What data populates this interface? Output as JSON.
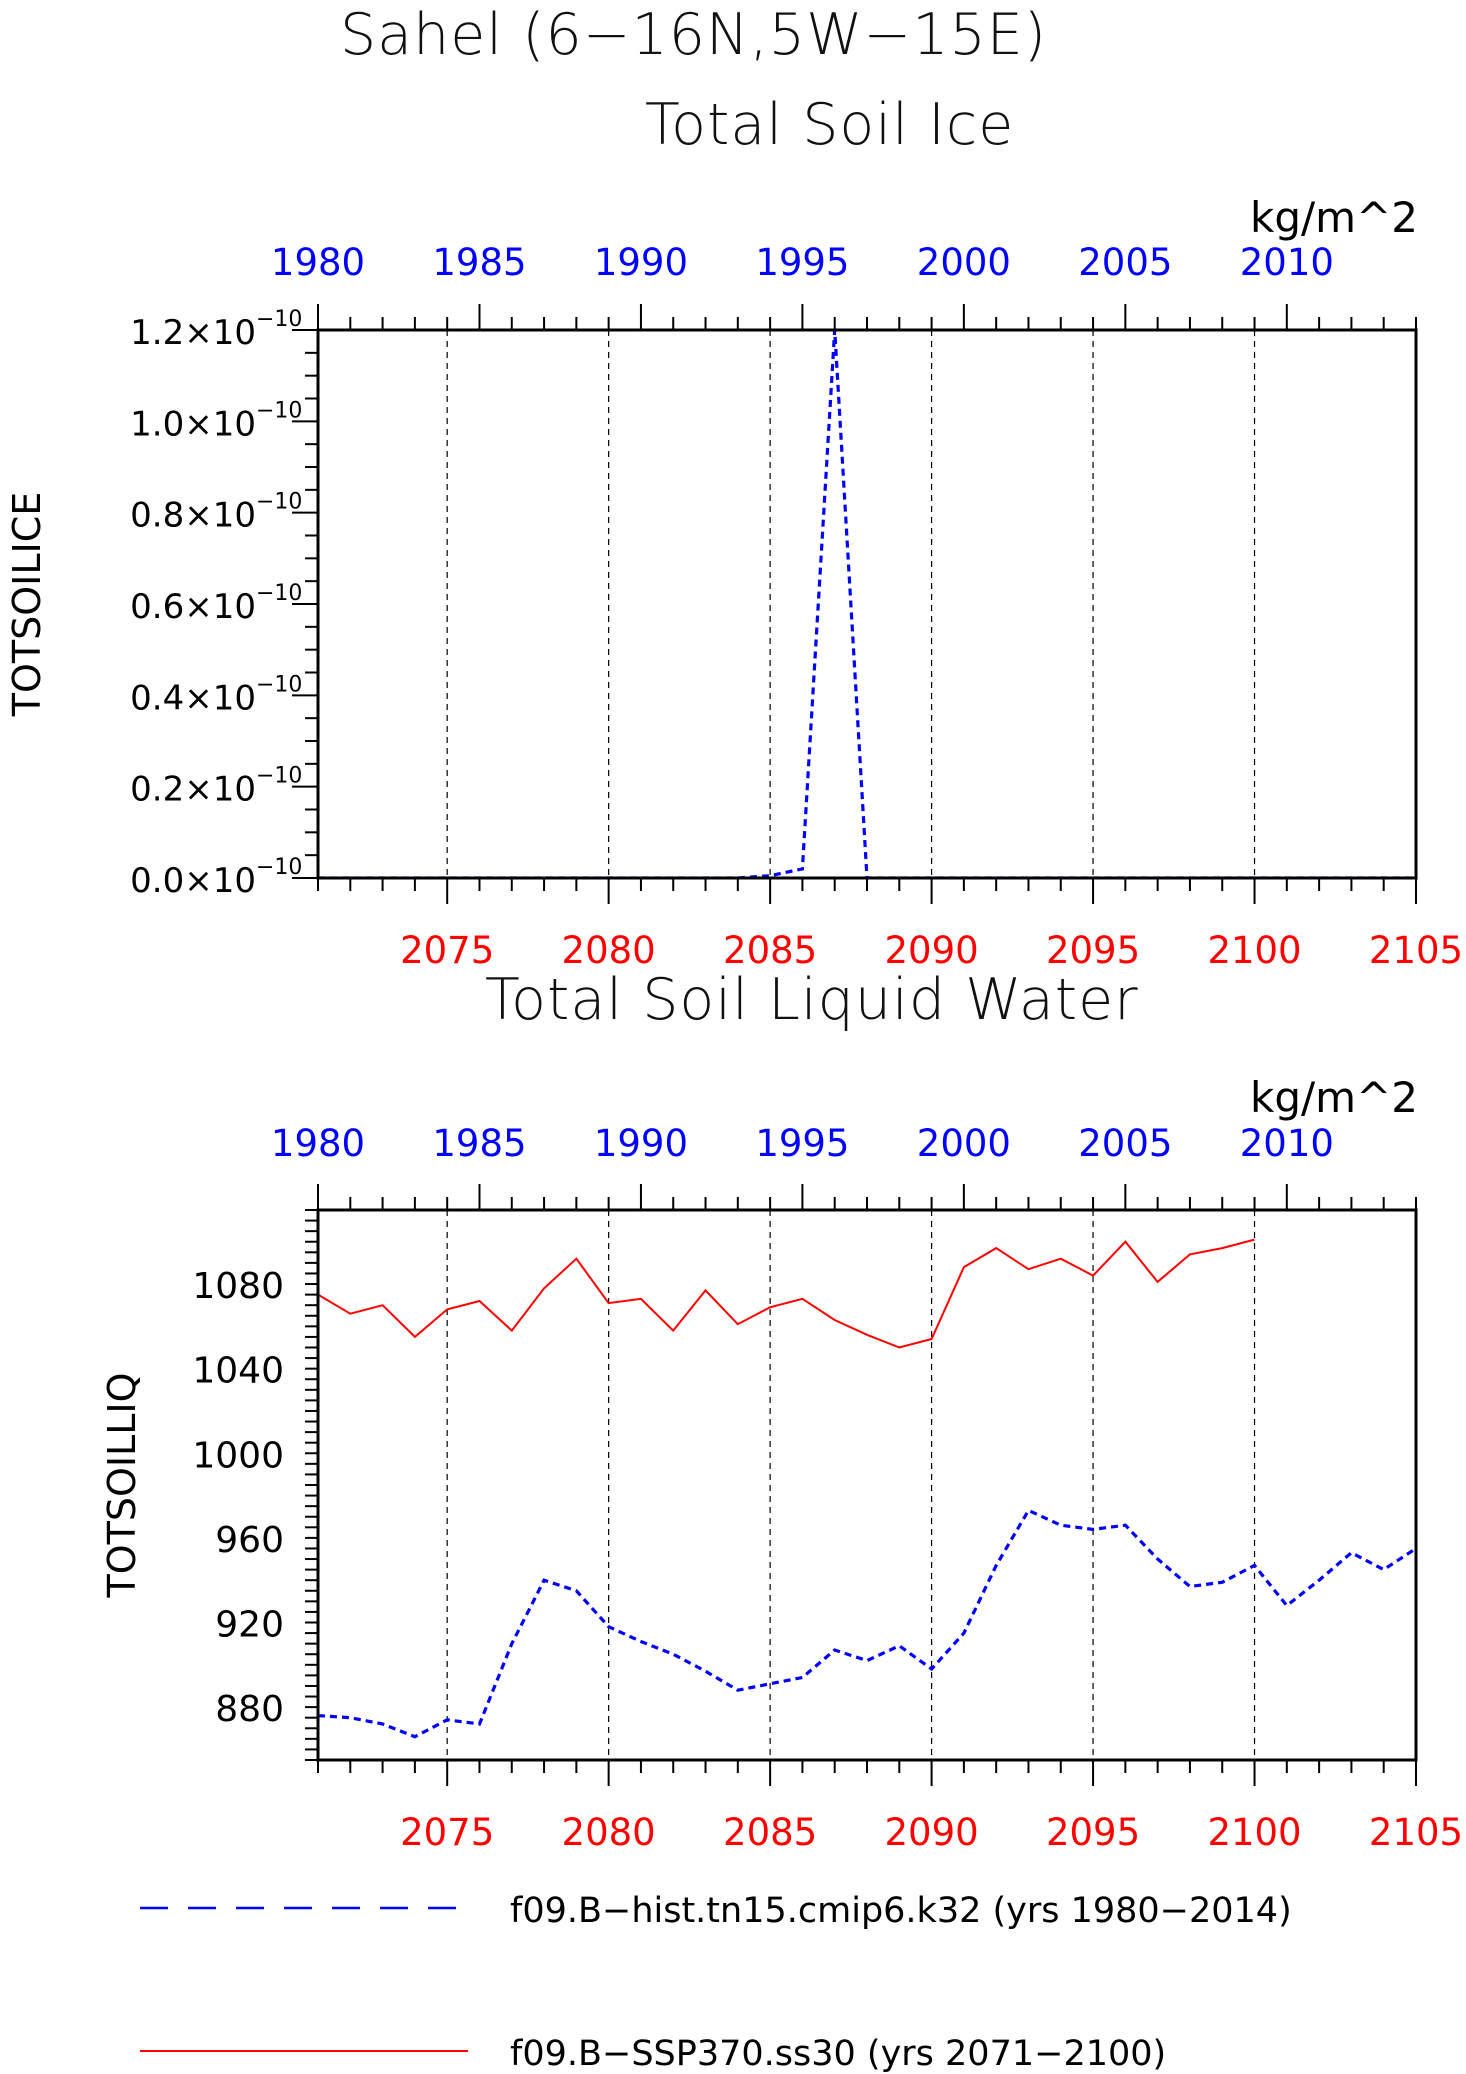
{
  "figure": {
    "title": "Sahel (6−16N,5W−15E)"
  },
  "legend": {
    "placement": "bottom",
    "entries": [
      {
        "label": "f09.B−hist.tn15.cmip6.k32 (yrs 1980−2014)",
        "color": "#0000ff",
        "style": "dashed"
      },
      {
        "label": "f09.B−SSP370.ss30 (yrs 2071−2100)",
        "color": "#ff0000",
        "style": "solid"
      }
    ]
  },
  "colors": {
    "hist": "#0000ff",
    "ssp": "#ff0000",
    "axis": "#000000"
  },
  "chart_data": [
    {
      "type": "line",
      "title": "Total Soil Ice",
      "units": "kg/m^2",
      "ylabel": "TOTSOILICE",
      "ylim": [
        0,
        1.2e-10
      ],
      "yticks": [
        0,
        2e-11,
        4e-11,
        6e-11,
        8e-11,
        1e-10,
        1.2e-10
      ],
      "ytick_labels": [
        {
          "mant": "0.0×10",
          "exp": "−10"
        },
        {
          "mant": "0.2×10",
          "exp": "−10"
        },
        {
          "mant": "0.4×10",
          "exp": "−10"
        },
        {
          "mant": "0.6×10",
          "exp": "−10"
        },
        {
          "mant": "0.8×10",
          "exp": "−10"
        },
        {
          "mant": "1.0×10",
          "exp": "−10"
        },
        {
          "mant": "1.2×10",
          "exp": "−10"
        }
      ],
      "x_bottom_range": [
        2071,
        2105
      ],
      "x_bottom_ticks": [
        2075,
        2080,
        2085,
        2090,
        2095,
        2100,
        2105
      ],
      "x_top_range": [
        1980,
        2014
      ],
      "x_top_ticks": [
        1980,
        1985,
        1990,
        1995,
        2000,
        2005,
        2010
      ],
      "grid": "vertical dashed at major ticks",
      "series": [
        {
          "name": "f09.B−hist.tn15.cmip6.k32 (yrs 1980−2014)",
          "axis": "top",
          "color": "#0000ff",
          "style": "dashed",
          "x": [
            1980,
            1981,
            1982,
            1983,
            1984,
            1985,
            1986,
            1987,
            1988,
            1989,
            1990,
            1991,
            1992,
            1993,
            1994,
            1995,
            1996,
            1997,
            1998,
            1999,
            2000,
            2001,
            2002,
            2003,
            2004,
            2005,
            2006,
            2007,
            2008,
            2009,
            2010,
            2011,
            2012,
            2013,
            2014
          ],
          "y": [
            0,
            0,
            0,
            0,
            0,
            0,
            0,
            0,
            0,
            0,
            0,
            0,
            0,
            0,
            5e-13,
            2e-12,
            1.2e-10,
            0,
            0,
            0,
            0,
            0,
            0,
            0,
            0,
            0,
            0,
            0,
            0,
            0,
            0,
            0,
            0,
            0,
            0
          ]
        },
        {
          "name": "f09.B−SSP370.ss30 (yrs 2071−2100)",
          "axis": "bottom",
          "color": "#ff0000",
          "style": "solid",
          "x": [
            2071,
            2072,
            2073,
            2074,
            2075,
            2076,
            2077,
            2078,
            2079,
            2080,
            2081,
            2082,
            2083,
            2084,
            2085,
            2086,
            2087,
            2088,
            2089,
            2090,
            2091,
            2092,
            2093,
            2094,
            2095,
            2096,
            2097,
            2098,
            2099,
            2100
          ],
          "y": [
            0,
            0,
            0,
            0,
            0,
            0,
            0,
            0,
            0,
            0,
            0,
            0,
            0,
            0,
            0,
            0,
            0,
            0,
            0,
            0,
            0,
            0,
            0,
            0,
            0,
            0,
            0,
            0,
            0,
            0
          ]
        }
      ]
    },
    {
      "type": "line",
      "title": "Total Soil Liquid Water",
      "units": "kg/m^2",
      "ylabel": "TOTSOILLIQ",
      "ylim": [
        855,
        1115
      ],
      "yticks": [
        880,
        920,
        960,
        1000,
        1040,
        1080
      ],
      "ytick_labels": [
        {
          "mant": "880",
          "exp": ""
        },
        {
          "mant": "920",
          "exp": ""
        },
        {
          "mant": "960",
          "exp": ""
        },
        {
          "mant": "1000",
          "exp": ""
        },
        {
          "mant": "1040",
          "exp": ""
        },
        {
          "mant": "1080",
          "exp": ""
        }
      ],
      "x_bottom_range": [
        2071,
        2105
      ],
      "x_bottom_ticks": [
        2075,
        2080,
        2085,
        2090,
        2095,
        2100,
        2105
      ],
      "x_top_range": [
        1980,
        2014
      ],
      "x_top_ticks": [
        1980,
        1985,
        1990,
        1995,
        2000,
        2005,
        2010
      ],
      "grid": "vertical dashed at major ticks",
      "series": [
        {
          "name": "f09.B−hist.tn15.cmip6.k32 (yrs 1980−2014)",
          "axis": "top",
          "color": "#0000ff",
          "style": "dashed",
          "x": [
            1980,
            1981,
            1982,
            1983,
            1984,
            1985,
            1986,
            1987,
            1988,
            1989,
            1990,
            1991,
            1992,
            1993,
            1994,
            1995,
            1996,
            1997,
            1998,
            1999,
            2000,
            2001,
            2002,
            2003,
            2004,
            2005,
            2006,
            2007,
            2008,
            2009,
            2010,
            2011,
            2012,
            2013,
            2014
          ],
          "y": [
            876,
            875,
            872,
            866,
            874,
            872,
            910,
            940,
            935,
            918,
            911,
            905,
            897,
            888,
            891,
            894,
            907,
            902,
            909,
            898,
            915,
            947,
            973,
            966,
            964,
            966,
            950,
            937,
            939,
            947,
            928,
            940,
            953,
            945,
            955
          ]
        },
        {
          "name": "f09.B−SSP370.ss30 (yrs 2071−2100)",
          "axis": "bottom",
          "color": "#ff0000",
          "style": "solid",
          "x": [
            2071,
            2072,
            2073,
            2074,
            2075,
            2076,
            2077,
            2078,
            2079,
            2080,
            2081,
            2082,
            2083,
            2084,
            2085,
            2086,
            2087,
            2088,
            2089,
            2090,
            2091,
            2092,
            2093,
            2094,
            2095,
            2096,
            2097,
            2098,
            2099,
            2100
          ],
          "y": [
            1075,
            1066,
            1070,
            1055,
            1068,
            1072,
            1058,
            1078,
            1092,
            1071,
            1073,
            1058,
            1077,
            1061,
            1069,
            1073,
            1063,
            1056,
            1050,
            1054,
            1088,
            1097,
            1087,
            1092,
            1084,
            1100,
            1081,
            1094,
            1097,
            1101
          ]
        }
      ]
    }
  ]
}
